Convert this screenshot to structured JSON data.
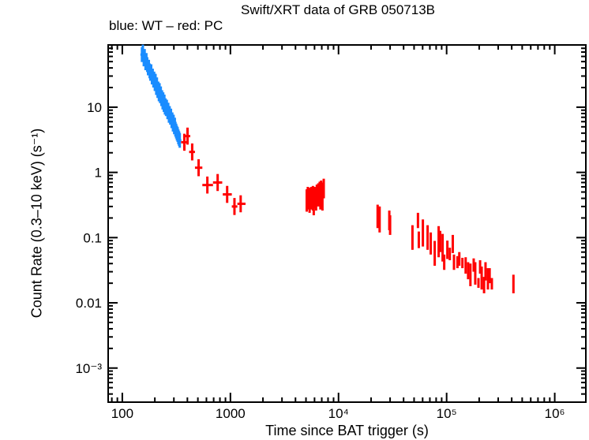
{
  "chart_data": {
    "type": "scatter",
    "title": "Swift/XRT data of GRB 050713B",
    "subtitle": "blue: WT – red: PC",
    "xlabel": "Time since BAT trigger (s)",
    "ylabel": "Count Rate (0.3–10 keV) (s⁻¹)",
    "xscale": "log",
    "yscale": "log",
    "xlim": [
      74,
      1940000
    ],
    "ylim": [
      0.0003,
      90
    ],
    "x_ticks": [
      {
        "v": 100,
        "label": "100"
      },
      {
        "v": 1000,
        "label": "1000"
      },
      {
        "v": 10000,
        "label": "10⁴"
      },
      {
        "v": 100000,
        "label": "10⁵"
      },
      {
        "v": 1000000,
        "label": "10⁶"
      }
    ],
    "y_ticks": [
      {
        "v": 0.001,
        "label": "10⁻³"
      },
      {
        "v": 0.01,
        "label": "0.01"
      },
      {
        "v": 0.1,
        "label": "0.1"
      },
      {
        "v": 1,
        "label": "1"
      },
      {
        "v": 10,
        "label": "10"
      }
    ],
    "grid": false,
    "colors": {
      "WT": "#1a8cff",
      "PC": "#ff0000"
    },
    "series": [
      {
        "mode": "WT",
        "columns": [
          "t",
          "rate"
        ],
        "points": [
          [
            152,
            64
          ],
          [
            155,
            70
          ],
          [
            158,
            55
          ],
          [
            161,
            60
          ],
          [
            164,
            48
          ],
          [
            167,
            52
          ],
          [
            170,
            45
          ],
          [
            173,
            40
          ],
          [
            176,
            41
          ],
          [
            179,
            36
          ],
          [
            182,
            33
          ],
          [
            185,
            35
          ],
          [
            188,
            29
          ],
          [
            191,
            30
          ],
          [
            194,
            26
          ],
          [
            197,
            27
          ],
          [
            200,
            23
          ],
          [
            203,
            25
          ],
          [
            206,
            20
          ],
          [
            209,
            22
          ],
          [
            212,
            18
          ],
          [
            215,
            19
          ],
          [
            218,
            16
          ],
          [
            221,
            18
          ],
          [
            224,
            15
          ],
          [
            227,
            16
          ],
          [
            230,
            13.5
          ],
          [
            233,
            14
          ],
          [
            236,
            12
          ],
          [
            239,
            13
          ],
          [
            242,
            11
          ],
          [
            245,
            12
          ],
          [
            248,
            10
          ],
          [
            251,
            10.5
          ],
          [
            254,
            9.5
          ],
          [
            258,
            10
          ],
          [
            262,
            8.5
          ],
          [
            266,
            9
          ],
          [
            270,
            7.5
          ],
          [
            274,
            8
          ],
          [
            278,
            7
          ],
          [
            282,
            7.3
          ],
          [
            286,
            6.2
          ],
          [
            290,
            6.4
          ],
          [
            294,
            5.5
          ],
          [
            298,
            5.9
          ],
          [
            302,
            5.0
          ],
          [
            306,
            5.3
          ],
          [
            310,
            4.6
          ],
          [
            315,
            4.3
          ],
          [
            320,
            4.0
          ],
          [
            325,
            3.8
          ],
          [
            330,
            3.5
          ],
          [
            335,
            3.3
          ],
          [
            340,
            3.1
          ]
        ]
      },
      {
        "mode": "PC",
        "columns": [
          "t",
          "rate",
          "t_lo",
          "t_hi"
        ],
        "points": [
          [
            375,
            2.9,
            350,
            400
          ],
          [
            401,
            3.6,
            380,
            425
          ],
          [
            443,
            2.06,
            415,
            470
          ],
          [
            508,
            1.18,
            470,
            550
          ],
          [
            612,
            0.64,
            550,
            690
          ],
          [
            762,
            0.7,
            690,
            840
          ],
          [
            933,
            0.46,
            850,
            1030
          ],
          [
            1090,
            0.3,
            1030,
            1160
          ],
          [
            1244,
            0.33,
            1160,
            1380
          ]
        ]
      },
      {
        "mode": "PC",
        "columns": [
          "t",
          "rate_lo",
          "rate_hi"
        ],
        "points": [
          [
            5080,
            0.25,
            0.55
          ],
          [
            5200,
            0.27,
            0.6
          ],
          [
            5300,
            0.3,
            0.5
          ],
          [
            5400,
            0.24,
            0.58
          ],
          [
            5500,
            0.28,
            0.52
          ],
          [
            5600,
            0.27,
            0.6
          ],
          [
            5700,
            0.3,
            0.55
          ],
          [
            5800,
            0.26,
            0.62
          ],
          [
            5900,
            0.22,
            0.45
          ],
          [
            6000,
            0.28,
            0.6
          ],
          [
            6100,
            0.3,
            0.58
          ],
          [
            6200,
            0.26,
            0.52
          ],
          [
            6300,
            0.3,
            0.65
          ],
          [
            6400,
            0.33,
            0.6
          ],
          [
            6500,
            0.36,
            0.68
          ],
          [
            6600,
            0.3,
            0.55
          ],
          [
            6700,
            0.36,
            0.72
          ],
          [
            6800,
            0.27,
            0.5
          ],
          [
            6900,
            0.4,
            0.75
          ],
          [
            7000,
            0.33,
            0.7
          ],
          [
            7100,
            0.26,
            0.5
          ],
          [
            7300,
            0.4,
            0.8
          ],
          [
            23000,
            0.14,
            0.32
          ],
          [
            23500,
            0.15,
            0.3
          ],
          [
            24000,
            0.12,
            0.3
          ],
          [
            29500,
            0.13,
            0.26
          ],
          [
            30000,
            0.11,
            0.22
          ],
          [
            48300,
            0.065,
            0.155
          ],
          [
            54300,
            0.14,
            0.24
          ],
          [
            55300,
            0.069,
            0.124
          ],
          [
            60300,
            0.073,
            0.19
          ],
          [
            66700,
            0.065,
            0.155
          ],
          [
            71300,
            0.055,
            0.12
          ],
          [
            77600,
            0.037,
            0.089
          ],
          [
            84400,
            0.05,
            0.15
          ],
          [
            87100,
            0.06,
            0.127
          ],
          [
            91800,
            0.043,
            0.114
          ],
          [
            95000,
            0.032,
            0.055
          ],
          [
            101600,
            0.047,
            0.09
          ],
          [
            107000,
            0.045,
            0.07
          ],
          [
            114000,
            0.058,
            0.11
          ],
          [
            117000,
            0.032,
            0.055
          ],
          [
            126000,
            0.034,
            0.052
          ],
          [
            131000,
            0.037,
            0.06
          ],
          [
            140000,
            0.034,
            0.049
          ],
          [
            150000,
            0.028,
            0.05
          ],
          [
            158000,
            0.023,
            0.042
          ],
          [
            166000,
            0.018,
            0.04
          ],
          [
            178000,
            0.03,
            0.048
          ],
          [
            184000,
            0.019,
            0.042
          ],
          [
            197000,
            0.017,
            0.024
          ],
          [
            204000,
            0.028,
            0.045
          ],
          [
            211000,
            0.016,
            0.036
          ],
          [
            222000,
            0.014,
            0.025
          ],
          [
            229000,
            0.022,
            0.042
          ],
          [
            241000,
            0.016,
            0.034
          ],
          [
            250000,
            0.02,
            0.034
          ],
          [
            262000,
            0.016,
            0.024
          ],
          [
            415000,
            0.014,
            0.027
          ]
        ]
      }
    ]
  }
}
